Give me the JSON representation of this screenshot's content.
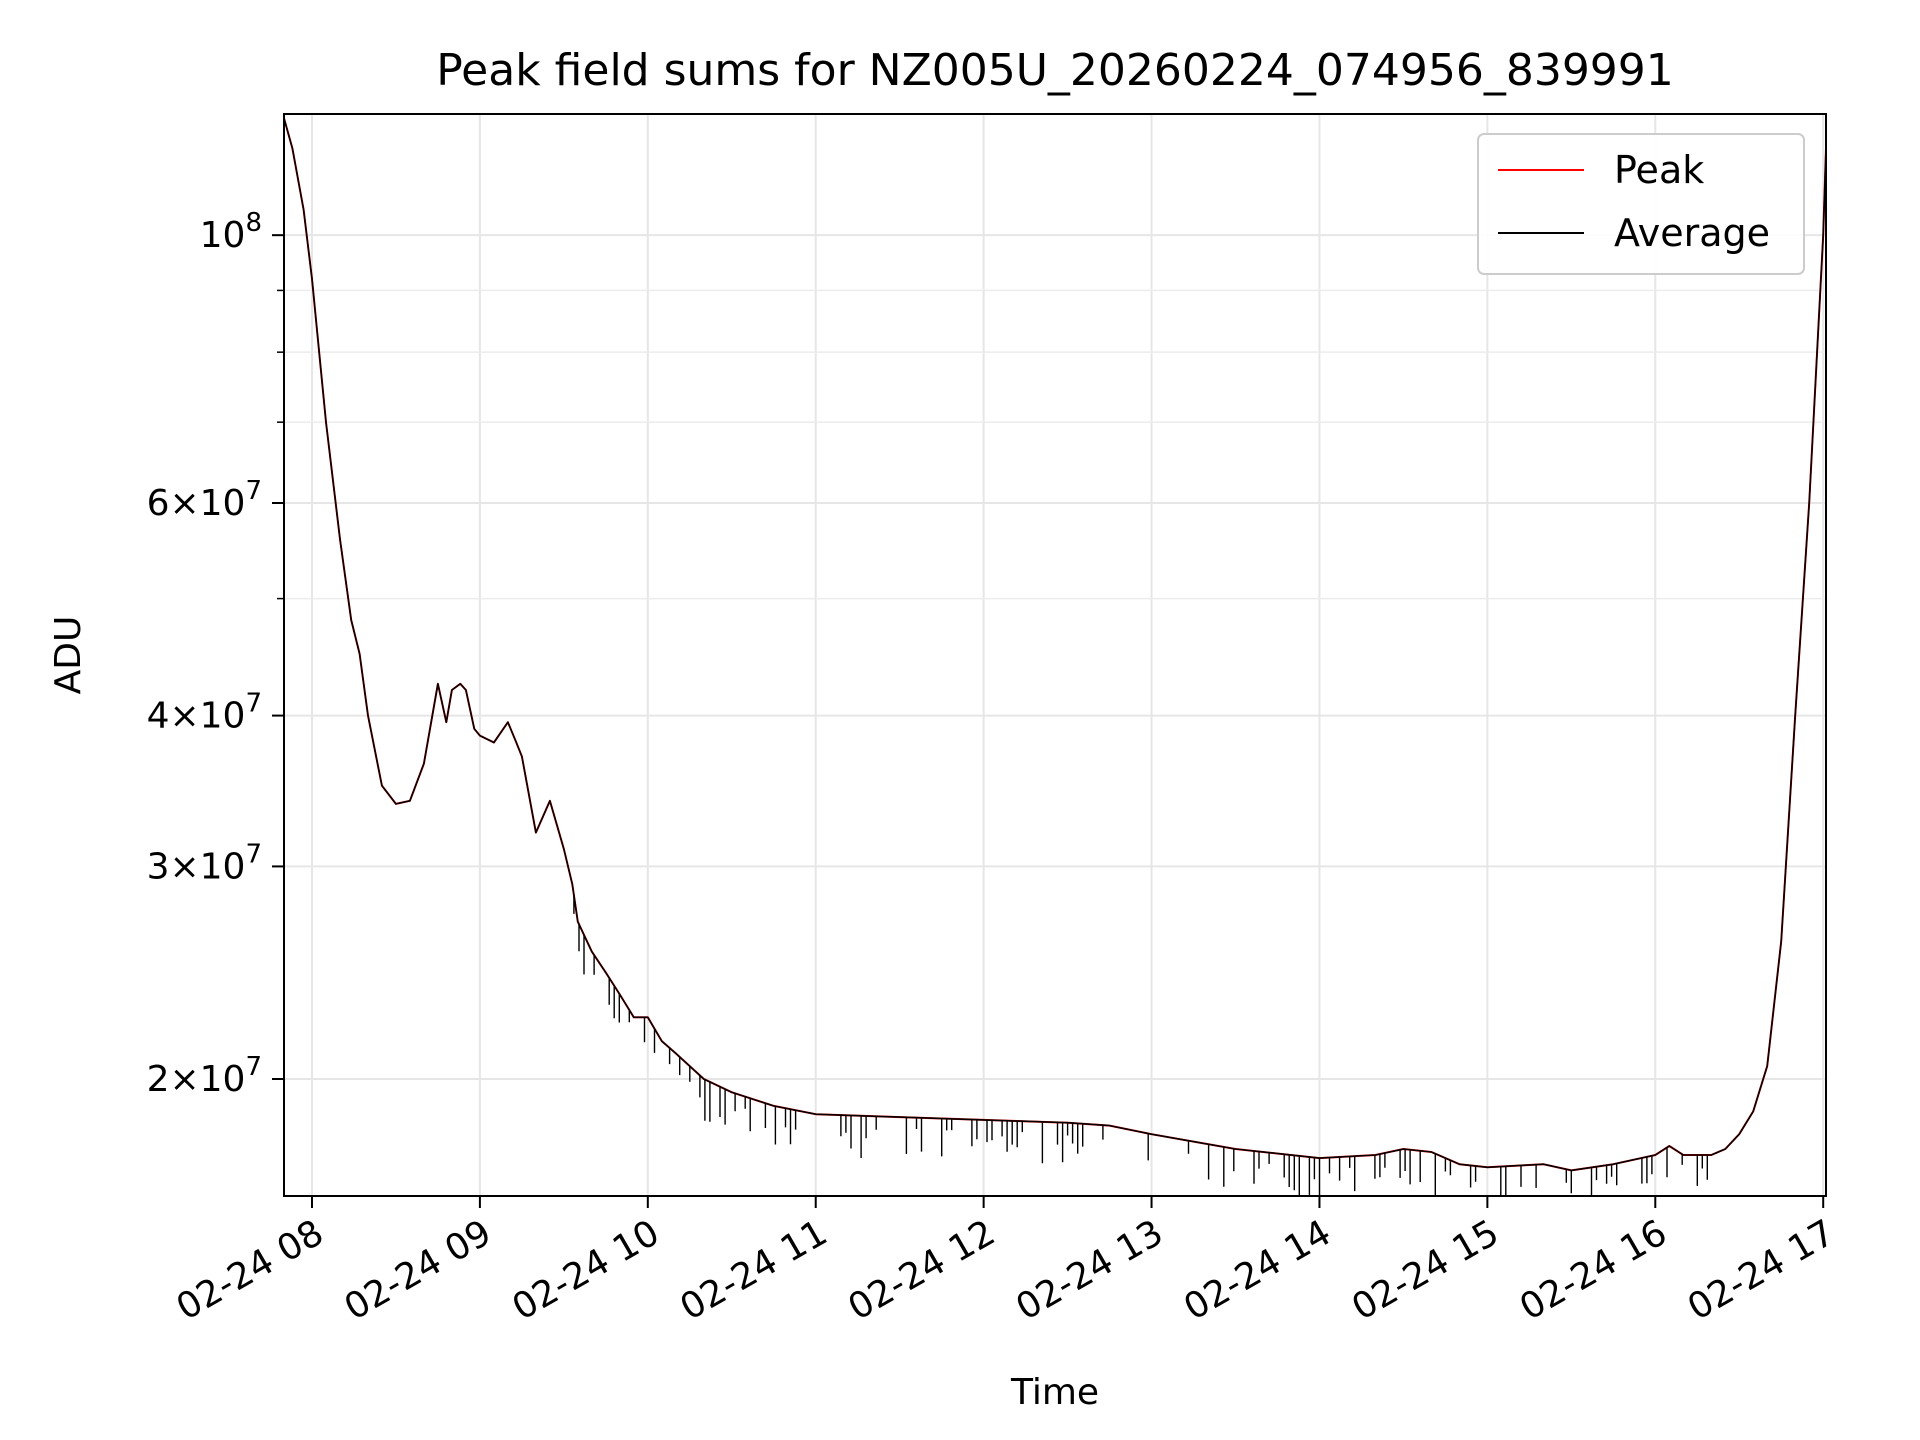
{
  "chart_data": {
    "type": "line",
    "title": "Peak field sums for NZ005U_20260224_074956_839991",
    "xlabel": "Time",
    "ylabel": "ADU",
    "y_scale": "log",
    "grid": true,
    "legend_position": "top-right",
    "xlim": [
      "02-24 07:50",
      "02-24 17:01"
    ],
    "ylim": [
      16000000,
      126000000
    ],
    "x_ticks": [
      "02-24 08",
      "02-24 09",
      "02-24 10",
      "02-24 11",
      "02-24 12",
      "02-24 13",
      "02-24 14",
      "02-24 15",
      "02-24 16",
      "02-24 17"
    ],
    "x_tick_hours": [
      8,
      9,
      10,
      11,
      12,
      13,
      14,
      15,
      16,
      17
    ],
    "y_major_ticks": [
      {
        "value": 20000000,
        "mantissa": "2",
        "exp": "7"
      },
      {
        "value": 30000000,
        "mantissa": "3",
        "exp": "7"
      },
      {
        "value": 40000000,
        "mantissa": "4",
        "exp": "7"
      },
      {
        "value": 60000000,
        "mantissa": "6",
        "exp": "7"
      },
      {
        "value": 100000000,
        "mantissa": "",
        "exp": "8"
      }
    ],
    "y_minor_ticks": [
      50000000,
      70000000,
      80000000,
      90000000
    ],
    "series": [
      {
        "name": "Peak",
        "color": "#ff0000"
      },
      {
        "name": "Average",
        "color": "#000000"
      }
    ],
    "x": [
      "07:50",
      "07:53",
      "07:57",
      "08:00",
      "08:05",
      "08:10",
      "08:14",
      "08:17",
      "08:20",
      "08:25",
      "08:30",
      "08:35",
      "08:40",
      "08:45",
      "08:48",
      "08:50",
      "08:53",
      "08:55",
      "08:58",
      "09:00",
      "09:05",
      "09:10",
      "09:13",
      "09:15",
      "09:20",
      "09:25",
      "09:30",
      "09:33",
      "09:35",
      "09:40",
      "09:45",
      "09:50",
      "09:55",
      "10:00",
      "10:05",
      "10:10",
      "10:20",
      "10:30",
      "10:45",
      "11:00",
      "11:30",
      "12:00",
      "12:30",
      "12:45",
      "13:00",
      "13:30",
      "14:00",
      "14:20",
      "14:30",
      "14:40",
      "14:50",
      "15:00",
      "15:20",
      "15:30",
      "15:45",
      "16:00",
      "16:05",
      "16:10",
      "16:20",
      "16:25",
      "16:30",
      "16:35",
      "16:40",
      "16:45",
      "16:50",
      "16:55",
      "17:00",
      "17:01"
    ],
    "peak_values": [
      125000000,
      118000000,
      105000000,
      92000000,
      70000000,
      56000000,
      48000000,
      45000000,
      40000000,
      35000000,
      33800000,
      34000000,
      36500000,
      42500000,
      39500000,
      42000000,
      42500000,
      42000000,
      39000000,
      38500000,
      38000000,
      39500000,
      38000000,
      37000000,
      32000000,
      34000000,
      31000000,
      29000000,
      27000000,
      25500000,
      24500000,
      23500000,
      22500000,
      22500000,
      21500000,
      21000000,
      20000000,
      19500000,
      19000000,
      18700000,
      18600000,
      18500000,
      18400000,
      18300000,
      18000000,
      17500000,
      17200000,
      17300000,
      17500000,
      17400000,
      17000000,
      16900000,
      17000000,
      16800000,
      17000000,
      17300000,
      17600000,
      17300000,
      17300000,
      17500000,
      18000000,
      18800000,
      20500000,
      26000000,
      40000000,
      60000000,
      100000000,
      118000000
    ],
    "average_values": [
      125000000,
      118000000,
      105000000,
      92000000,
      70000000,
      56000000,
      48000000,
      45000000,
      40000000,
      35000000,
      33800000,
      34000000,
      36500000,
      42500000,
      39500000,
      42000000,
      42500000,
      42000000,
      39000000,
      38500000,
      38000000,
      39500000,
      38000000,
      37000000,
      32000000,
      34000000,
      31000000,
      29000000,
      27000000,
      25500000,
      24500000,
      23500000,
      22500000,
      22500000,
      21500000,
      21000000,
      20000000,
      19500000,
      19000000,
      18700000,
      18600000,
      18500000,
      18400000,
      18300000,
      18000000,
      17500000,
      17200000,
      17300000,
      17500000,
      17400000,
      17000000,
      16900000,
      17000000,
      16800000,
      17000000,
      17300000,
      17600000,
      17300000,
      17300000,
      17500000,
      18000000,
      18800000,
      20500000,
      26000000,
      40000000,
      60000000,
      100000000,
      118000000
    ]
  }
}
